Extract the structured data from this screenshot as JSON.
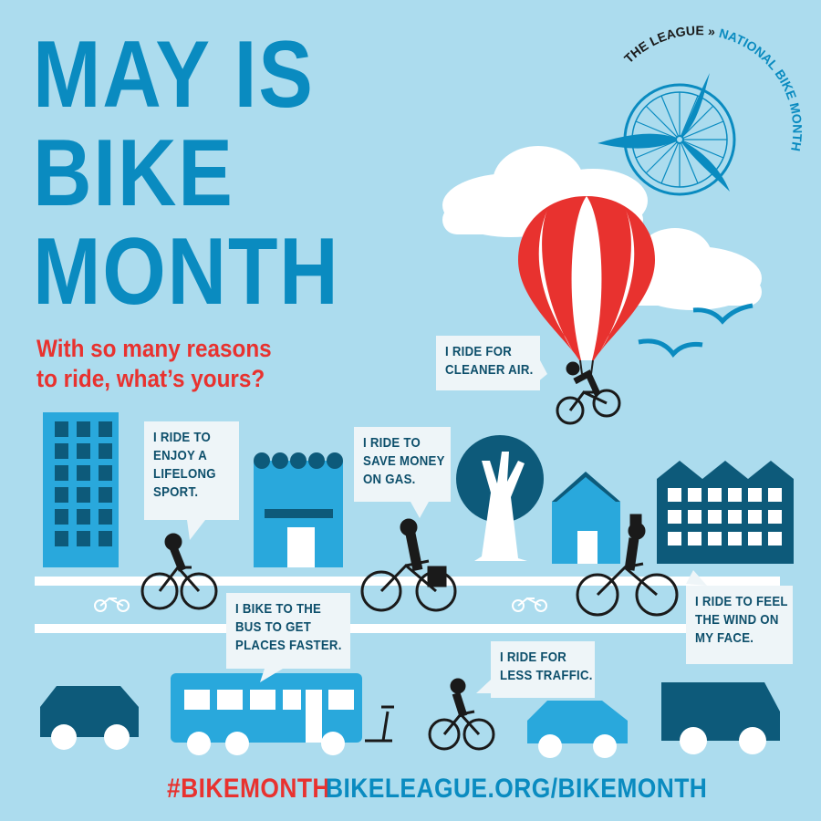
{
  "title": {
    "line1": "MAY IS",
    "line2": "BIKE",
    "line3": "MONTH"
  },
  "subtitle": {
    "line1": "With so many reasons",
    "line2": "to ride, what’s yours?"
  },
  "logo": {
    "text_dark": "THE LEAGUE »",
    "text_blue": "NATIONAL BIKE MONTH"
  },
  "bubbles": [
    {
      "lines": [
        "I RIDE FOR",
        "CLEANER AIR."
      ]
    },
    {
      "lines": [
        "I RIDE TO",
        "ENJOY A",
        "LIFELONG",
        "SPORT."
      ]
    },
    {
      "lines": [
        "I RIDE TO",
        "SAVE MONEY",
        "ON GAS."
      ]
    },
    {
      "lines": [
        "I BIKE TO THE",
        "BUS TO GET",
        "PLACES FASTER."
      ]
    },
    {
      "lines": [
        "I RIDE FOR",
        "LESS TRAFFIC."
      ]
    },
    {
      "lines": [
        "I RIDE TO FEEL",
        "THE WIND ON",
        "MY FACE."
      ]
    }
  ],
  "footer": {
    "hashtag": "#BIKEMONTH",
    "url": "BIKELEAGUE.ORG/BIKEMONTH"
  },
  "colors": {
    "background": "#acdcee",
    "title_blue": "#0a8bc0",
    "red": "#e8322f",
    "dark_teal": "#0d5a7a",
    "light_blue": "#29a8dc"
  }
}
